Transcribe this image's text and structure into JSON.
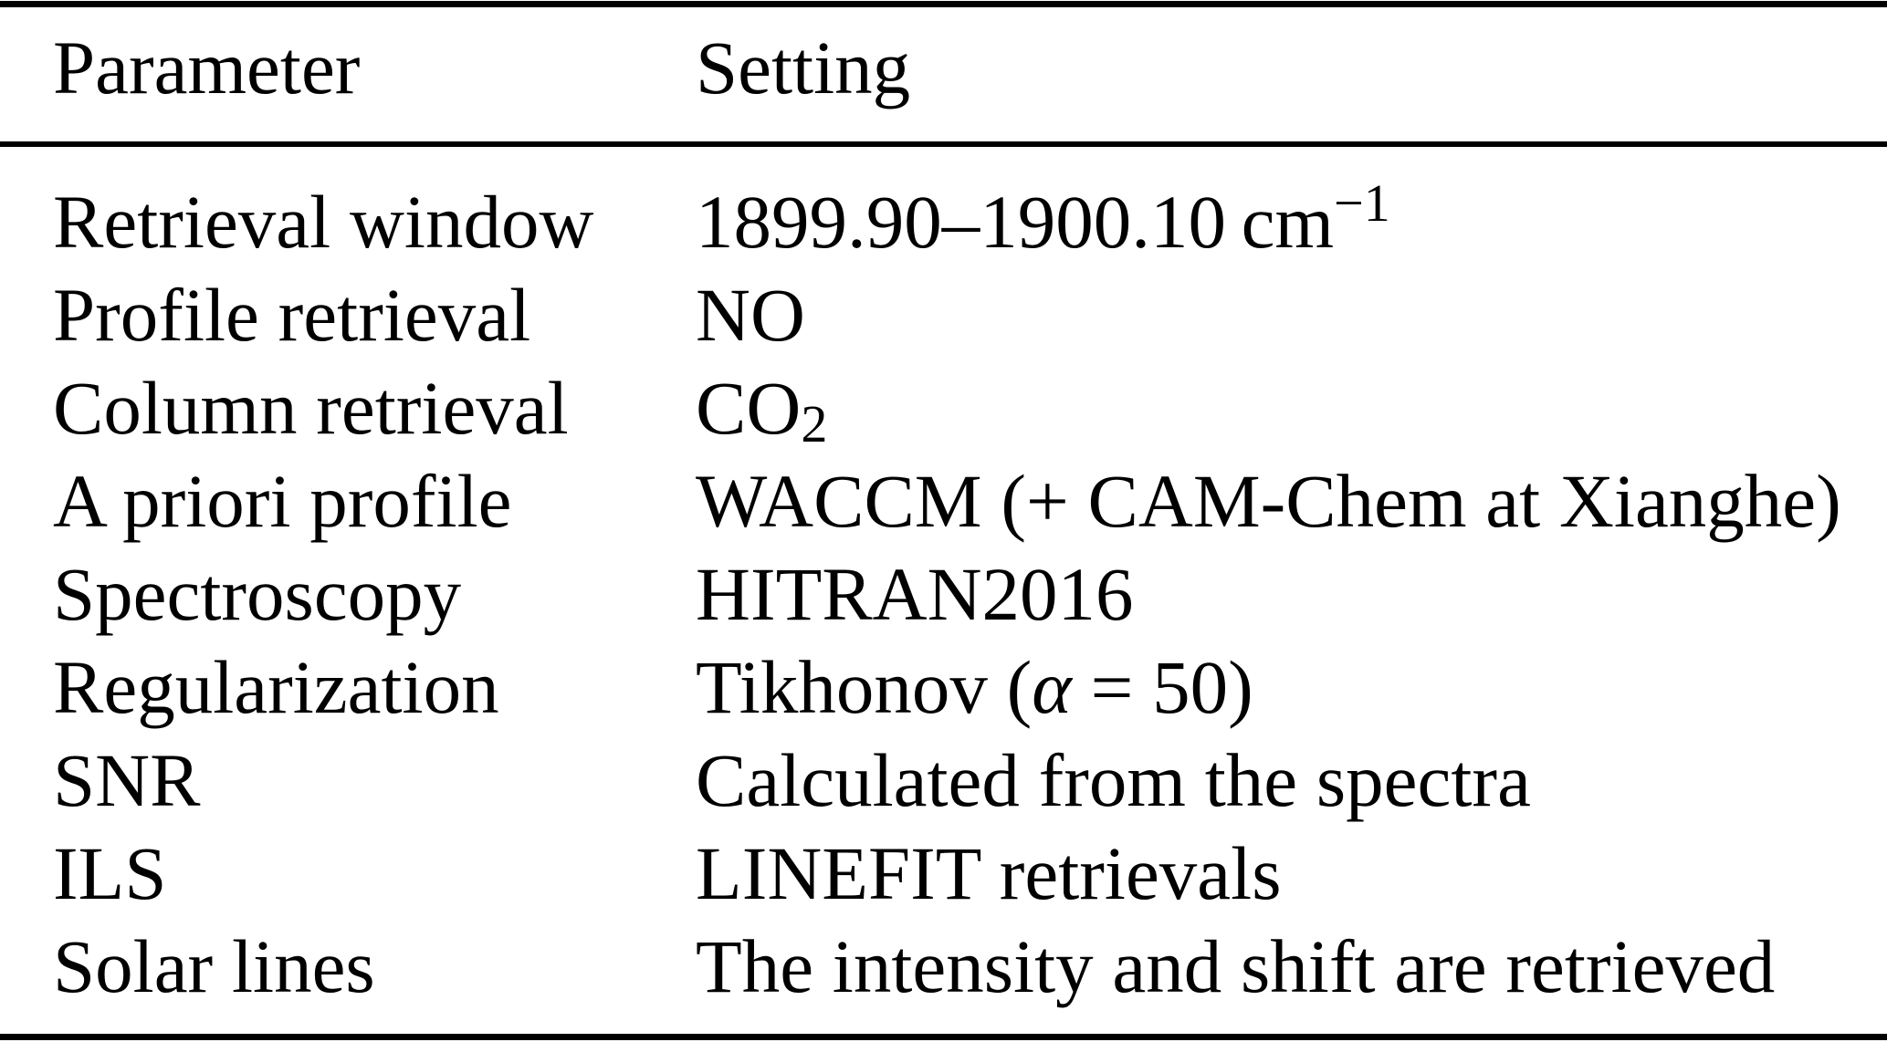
{
  "colors": {
    "text": "#000000",
    "background": "#ffffff",
    "rule": "#000000"
  },
  "table": {
    "columns": [
      {
        "label": "Parameter"
      },
      {
        "label": "Setting"
      }
    ],
    "rows": [
      {
        "parameter": "Retrieval window",
        "setting_segments": [
          {
            "text": "1899.90–1900.10 cm",
            "style": "normal"
          },
          {
            "text": "−1",
            "style": "sup"
          }
        ]
      },
      {
        "parameter": "Profile retrieval",
        "setting_segments": [
          {
            "text": "NO",
            "style": "normal"
          }
        ]
      },
      {
        "parameter": "Column retrieval",
        "setting_segments": [
          {
            "text": "CO",
            "style": "normal"
          },
          {
            "text": "2",
            "style": "sub"
          }
        ]
      },
      {
        "parameter": "A priori profile",
        "setting_segments": [
          {
            "text": "WACCM (+ CAM-Chem at Xianghe)",
            "style": "normal"
          }
        ]
      },
      {
        "parameter": "Spectroscopy",
        "setting_segments": [
          {
            "text": "HITRAN2016",
            "style": "normal"
          }
        ]
      },
      {
        "parameter": "Regularization",
        "setting_segments": [
          {
            "text": "Tikhonov (",
            "style": "normal"
          },
          {
            "text": "α",
            "style": "italic"
          },
          {
            "text": " = 50)",
            "style": "normal"
          }
        ]
      },
      {
        "parameter": "SNR",
        "setting_segments": [
          {
            "text": "Calculated from the spectra",
            "style": "normal"
          }
        ]
      },
      {
        "parameter": "ILS",
        "setting_segments": [
          {
            "text": "LINEFIT retrievals",
            "style": "normal"
          }
        ]
      },
      {
        "parameter": "Solar lines",
        "setting_segments": [
          {
            "text": "The intensity and shift are retrieved",
            "style": "normal"
          }
        ]
      }
    ]
  }
}
